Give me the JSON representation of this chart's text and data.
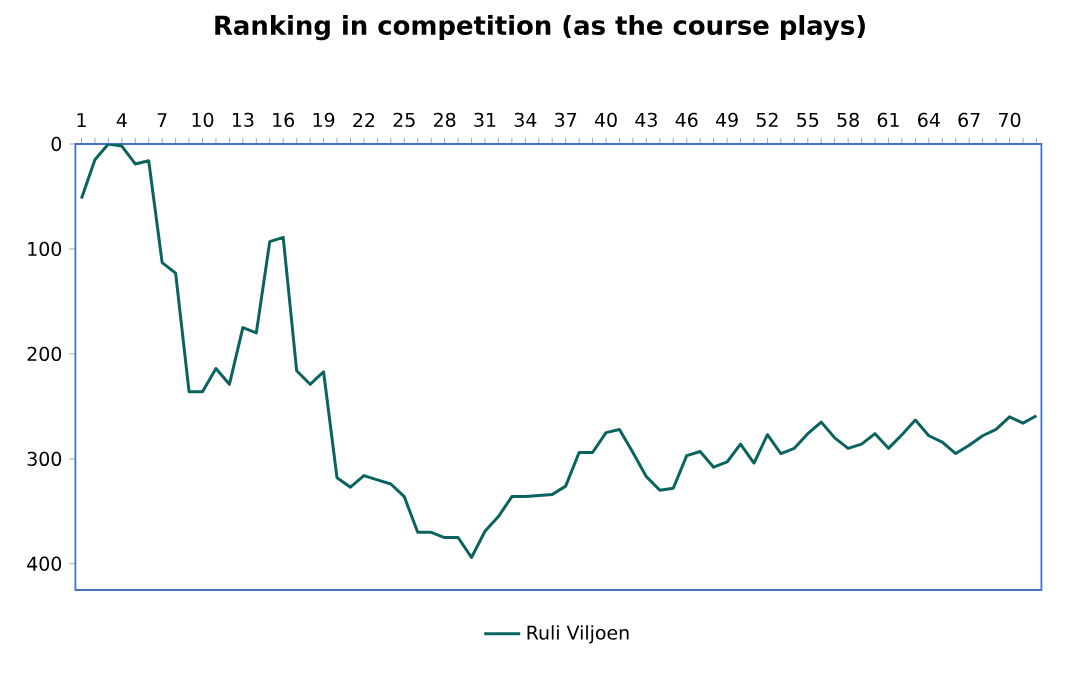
{
  "chart_data": {
    "type": "line",
    "title": "Ranking in competition (as the course plays)",
    "categories": [
      "1",
      null,
      null,
      "4",
      null,
      null,
      "7",
      null,
      null,
      "10",
      null,
      null,
      "13",
      null,
      null,
      "16",
      null,
      null,
      "19",
      null,
      null,
      "22",
      null,
      null,
      "25",
      null,
      null,
      "28",
      null,
      null,
      "31",
      null,
      null,
      "34",
      null,
      null,
      "37",
      null,
      null,
      "40",
      null,
      null,
      "43",
      null,
      null,
      "46",
      null,
      null,
      "49",
      null,
      null,
      "52",
      null,
      null,
      "55",
      null,
      null,
      "58",
      null,
      null,
      "61",
      null,
      null,
      "64",
      null,
      null,
      "67",
      null,
      null,
      "70",
      null,
      null
    ],
    "series": [
      {
        "name": "Ruli Viljoen",
        "color": "#0b6360",
        "values": [
          52,
          15,
          0,
          2,
          19,
          16,
          113,
          123,
          236,
          236,
          214,
          229,
          175,
          180,
          93,
          89,
          216,
          229,
          217,
          318,
          327,
          316,
          320,
          324,
          336,
          370,
          370,
          375,
          375,
          394,
          369,
          355,
          336,
          336,
          335,
          334,
          326,
          294,
          294,
          275,
          272,
          294,
          317,
          330,
          328,
          297,
          293,
          308,
          303,
          286,
          304,
          277,
          295,
          290,
          276,
          265,
          280,
          290,
          286,
          276,
          290,
          277,
          263,
          278,
          284,
          295,
          287,
          278,
          272,
          260,
          266,
          259
        ]
      }
    ],
    "ylim": [
      425,
      0
    ],
    "yticks": [
      0,
      100,
      200,
      300,
      400
    ],
    "legend": "bottom",
    "marker": "none",
    "line_style": "solid"
  }
}
